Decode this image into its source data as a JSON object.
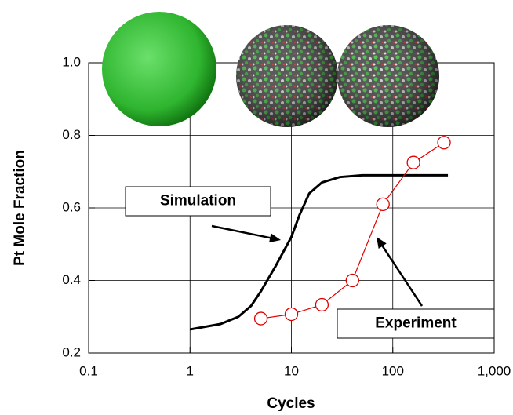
{
  "chart_data": {
    "type": "line",
    "x_label": "Cycles",
    "y_label": "Pt Mole Fraction",
    "xscale": "log",
    "grid": true,
    "xlim": [
      0.1,
      1000
    ],
    "xticks": [
      0.1,
      1,
      10,
      100,
      {
        "value": 1000,
        "label": "1,000"
      }
    ],
    "ylim": [
      0.2,
      1.0
    ],
    "yticks": [
      0.2,
      0.4,
      0.6,
      0.8,
      {
        "value": 1.0,
        "label": "1.0"
      }
    ],
    "series": [
      {
        "name": "Simulation",
        "color": "#000000",
        "marker": "none",
        "x": [
          1,
          2,
          3,
          4,
          5,
          7,
          10,
          12,
          15,
          20,
          30,
          50,
          100,
          350
        ],
        "values": [
          0.265,
          0.28,
          0.3,
          0.33,
          0.37,
          0.44,
          0.52,
          0.58,
          0.64,
          0.67,
          0.685,
          0.69,
          0.69,
          0.69
        ]
      },
      {
        "name": "Experiment",
        "color": "#e00000",
        "marker": "open-circle",
        "x": [
          5,
          10,
          20,
          40,
          80,
          160,
          320
        ],
        "values": [
          0.295,
          0.307,
          0.333,
          0.4,
          0.61,
          0.725,
          0.78
        ]
      }
    ]
  }
}
